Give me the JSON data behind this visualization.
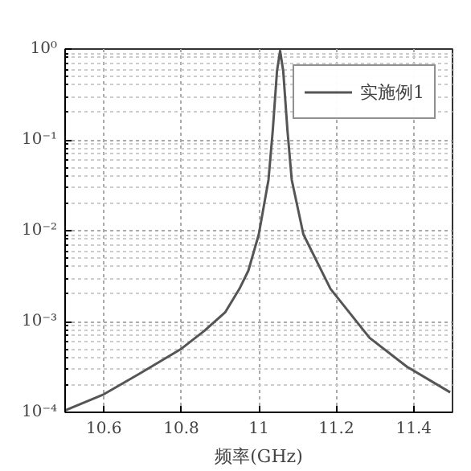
{
  "chart_data": {
    "type": "line",
    "xlabel": "频率(GHz)",
    "x": [
      10.5,
      10.6,
      10.69,
      10.8,
      10.86,
      10.913,
      10.95,
      10.973,
      11.0,
      11.025,
      11.036,
      11.047,
      11.055,
      11.063,
      11.074,
      11.085,
      11.115,
      11.185,
      11.286,
      11.383,
      11.494
    ],
    "series": [
      {
        "name": "实施例1",
        "color": "#555555",
        "values": [
          0.000105,
          0.000158,
          0.000263,
          0.000501,
          0.000794,
          0.00126,
          0.00229,
          0.00363,
          0.00912,
          0.0363,
          0.126,
          0.575,
          0.955,
          0.575,
          0.126,
          0.0363,
          0.00912,
          0.00229,
          0.000661,
          0.000316,
          0.000166
        ]
      }
    ],
    "xlim": [
      10.5,
      11.5
    ],
    "xticks": [
      10.6,
      10.8,
      11,
      11.2,
      11.4
    ],
    "ylim": [
      0.0001,
      1
    ],
    "yticks": [
      {
        "value": 0.0001,
        "label": "10⁻⁴"
      },
      {
        "value": 0.001,
        "label": "10⁻³"
      },
      {
        "value": 0.01,
        "label": "10⁻²"
      },
      {
        "value": 0.1,
        "label": "10⁻¹"
      },
      {
        "value": 1,
        "label": "10⁰"
      }
    ],
    "log": "y",
    "grid": true,
    "legend": "top right",
    "line_style": "solid",
    "marker": "none"
  }
}
